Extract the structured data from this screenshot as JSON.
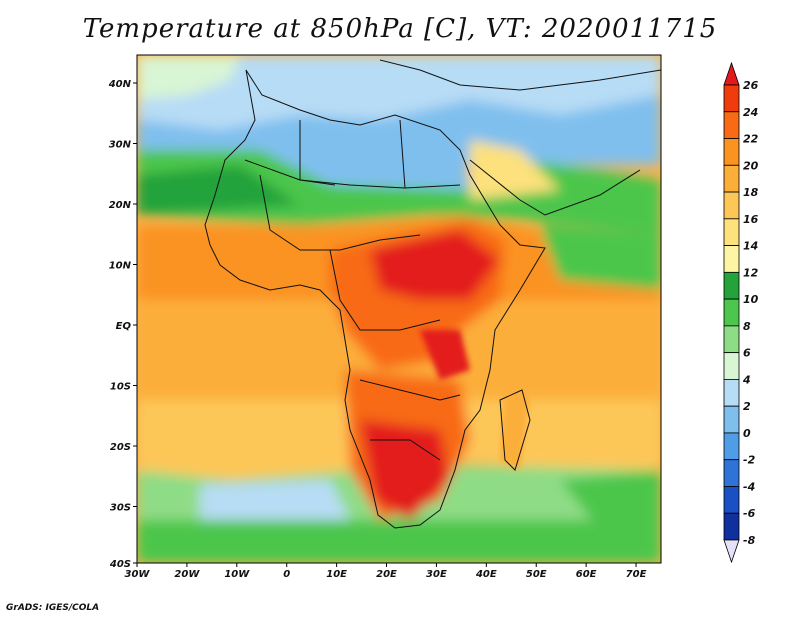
{
  "title": "Temperature at 850hPa [C], VT: 2020011715",
  "credit": "GrADS: IGES/COLA",
  "map": {
    "lon_ticks": [
      "30W",
      "20W",
      "10W",
      "0",
      "10E",
      "20E",
      "30E",
      "40E",
      "50E",
      "60E",
      "70E"
    ],
    "lat_ticks": [
      "40N",
      "30N",
      "20N",
      "10N",
      "EQ",
      "10S",
      "20S",
      "30S",
      "40S"
    ]
  },
  "colorbar": {
    "labels": [
      "26",
      "24",
      "22",
      "20",
      "18",
      "16",
      "14",
      "12",
      "10",
      "8",
      "6",
      "4",
      "2",
      "0",
      "-2",
      "-4",
      "-6",
      "-8"
    ],
    "colors": [
      "#e31a1c",
      "#f03c0c",
      "#f86a14",
      "#fb9320",
      "#fcae3a",
      "#fdc758",
      "#fde17c",
      "#fdf5a4",
      "#23a33a",
      "#4cc64c",
      "#8fdc86",
      "#d8f5d4",
      "#b7dcf5",
      "#7fbfee",
      "#4f9de6",
      "#2f73d6",
      "#1b4fc4",
      "#10309e",
      "#0b1f6e",
      "#e6e0f8"
    ]
  }
}
